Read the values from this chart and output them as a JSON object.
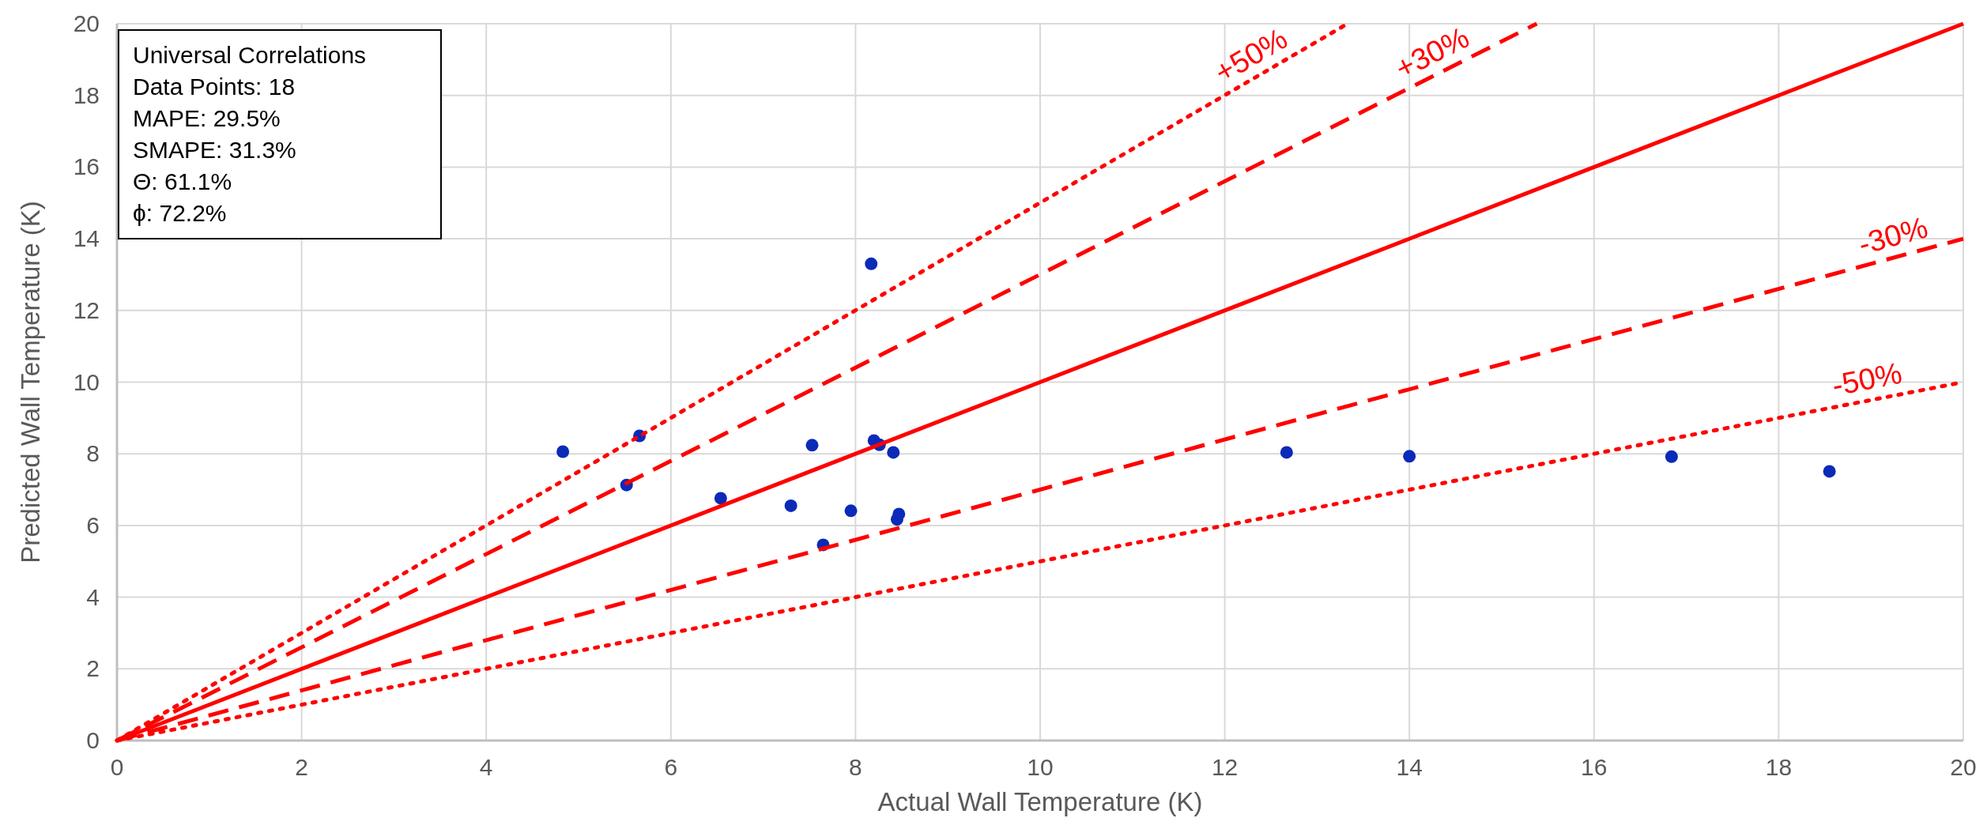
{
  "chart_data": {
    "type": "scatter",
    "xlabel": "Actual Wall Temperature (K)",
    "ylabel": "Predicted Wall Temperature (K)",
    "xlim": [
      0,
      20
    ],
    "ylim": [
      0,
      20
    ],
    "xticks": [
      0,
      2,
      4,
      6,
      8,
      10,
      12,
      14,
      16,
      18,
      20
    ],
    "yticks": [
      0,
      2,
      4,
      6,
      8,
      10,
      12,
      14,
      16,
      18,
      20
    ],
    "grid": true,
    "series": [
      {
        "color": "#0b2ab8",
        "marker": "circle",
        "x": [
          4.83,
          5.66,
          5.52,
          6.54,
          7.3,
          7.53,
          7.95,
          7.65,
          8.17,
          8.2,
          8.26,
          8.41,
          8.47,
          8.45,
          12.67,
          14.0,
          16.84,
          18.55
        ],
        "values": [
          8.06,
          8.5,
          7.13,
          6.76,
          6.55,
          8.24,
          6.41,
          5.46,
          13.3,
          8.37,
          8.25,
          8.04,
          6.32,
          6.17,
          8.04,
          7.93,
          7.92,
          7.51
        ]
      },
      {
        "type": "line",
        "color": "#ff0000",
        "line_style": "solid",
        "marker": "none",
        "x": [
          0,
          20
        ],
        "values": [
          0,
          20
        ]
      },
      {
        "type": "line",
        "color": "#ff0000",
        "line_style": "dashed",
        "marker": "none",
        "x": [
          0,
          15.38
        ],
        "values": [
          0,
          20
        ]
      },
      {
        "type": "line",
        "color": "#ff0000",
        "line_style": "dotted",
        "marker": "none",
        "x": [
          0,
          13.33
        ],
        "values": [
          0,
          20
        ]
      },
      {
        "type": "line",
        "color": "#ff0000",
        "line_style": "dashed",
        "marker": "none",
        "x": [
          0,
          20
        ],
        "values": [
          0,
          14
        ]
      },
      {
        "type": "line",
        "color": "#ff0000",
        "line_style": "dotted",
        "marker": "none",
        "x": [
          0,
          20
        ],
        "values": [
          0,
          10
        ]
      }
    ],
    "annotations": [
      "Universal Correlations",
      "Data Points: 18",
      "MAPE: 29.5%",
      "SMAPE: 31.3%",
      "Θ: 61.1%",
      "ϕ: 72.2%",
      {
        "text": "+50%",
        "x": 12.4,
        "y": 18.6
      },
      {
        "text": "+30%",
        "x": 14.35,
        "y": 18.655
      },
      {
        "text": "-30%",
        "x": 19.3,
        "y": 13.51
      },
      {
        "text": "-50%",
        "x": 19.0,
        "y": 9.5
      }
    ]
  }
}
